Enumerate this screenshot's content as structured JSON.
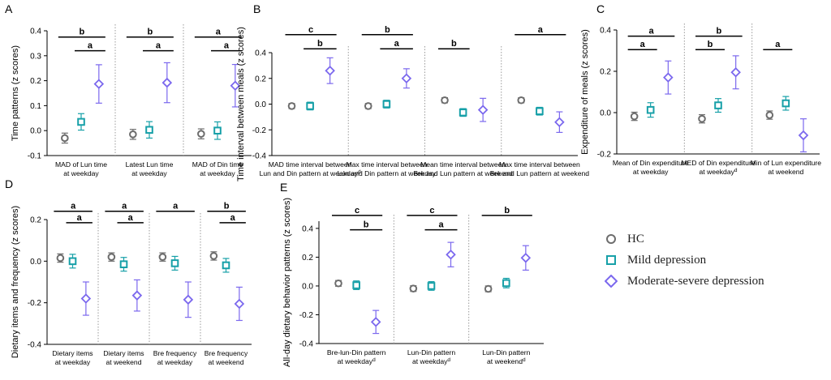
{
  "colors": {
    "hc": "#6d6d6d",
    "mild": "#17a0a8",
    "severe": "#7b68ee",
    "axis": "#000000",
    "divider": "#9a9a9a"
  },
  "legend": [
    {
      "key": "hc",
      "label": "HC",
      "marker": "circle"
    },
    {
      "key": "mild",
      "label": "Mild depression",
      "marker": "square"
    },
    {
      "key": "severe",
      "label": "Moderate-severe depression",
      "marker": "diamond"
    }
  ],
  "chart_data": [
    {
      "type": "scatter",
      "panel": "A",
      "ylabel": "Time patterns (z scores)",
      "ylim": [
        -0.1,
        0.4
      ],
      "yticks": [
        "-0.1",
        "0.0",
        "0.1",
        "0.2",
        "0.3",
        "0.4"
      ],
      "groups": [
        {
          "label": [
            "MAD of Lun time",
            "at weekday"
          ],
          "sup": "",
          "hc": [
            -0.03,
            0.02
          ],
          "mild": [
            0.035,
            0.033
          ],
          "severe": [
            0.187,
            0.077
          ],
          "sig": [
            {
              "text": "b",
              "from": "hc",
              "to": "severe",
              "level": 0.375
            },
            {
              "text": "a",
              "from": "mild",
              "to": "severe",
              "level": 0.32
            }
          ]
        },
        {
          "label": [
            "Latest Lun time",
            "at weekday"
          ],
          "sup": "",
          "hc": [
            -0.015,
            0.02
          ],
          "mild": [
            0.003,
            0.033
          ],
          "severe": [
            0.192,
            0.08
          ],
          "sig": [
            {
              "text": "b",
              "from": "hc",
              "to": "severe",
              "level": 0.375
            },
            {
              "text": "a",
              "from": "mild",
              "to": "severe",
              "level": 0.32
            }
          ]
        },
        {
          "label": [
            "MAD of Din time",
            "at weekday"
          ],
          "sup": "",
          "hc": [
            -0.013,
            0.02
          ],
          "mild": [
            0.0,
            0.035
          ],
          "severe": [
            0.18,
            0.085
          ],
          "sig": [
            {
              "text": "a",
              "from": "hc",
              "to": "severe",
              "level": 0.375
            },
            {
              "text": "a",
              "from": "mild",
              "to": "severe",
              "level": 0.32
            }
          ]
        }
      ]
    },
    {
      "type": "scatter",
      "panel": "B",
      "ylabel": "Time interval between meals (z scores)",
      "ylim": [
        -0.4,
        0.4
      ],
      "yticks": [
        "-0.4",
        "-0.2",
        "0.0",
        "0.2",
        "0.4"
      ],
      "groups": [
        {
          "label": [
            "MAD time interval between",
            "Lun and Din pattern at weekday"
          ],
          "sup": "d",
          "hc": [
            -0.015,
            0.02
          ],
          "mild": [
            -0.015,
            0.03
          ],
          "severe": [
            0.26,
            0.1
          ],
          "sig": [
            {
              "text": "c",
              "from": "hc",
              "to": "severe",
              "level": 0.54
            },
            {
              "text": "b",
              "from": "mild",
              "to": "severe",
              "level": 0.43
            }
          ]
        },
        {
          "label": [
            "Max time interval between",
            "Lun and Din pattern at weekday"
          ],
          "sup": "",
          "hc": [
            -0.015,
            0.02
          ],
          "mild": [
            0.0,
            0.03
          ],
          "severe": [
            0.2,
            0.075
          ],
          "sig": [
            {
              "text": "b",
              "from": "hc",
              "to": "severe",
              "level": 0.54
            },
            {
              "text": "a",
              "from": "mild",
              "to": "severe",
              "level": 0.43
            }
          ]
        },
        {
          "label": [
            "Mean time interval between",
            "Bre and Lun pattern at weekend"
          ],
          "sup": "",
          "hc": [
            0.03,
            0.02
          ],
          "mild": [
            -0.065,
            0.03
          ],
          "severe": [
            -0.045,
            0.09
          ],
          "sig": [
            {
              "text": "b",
              "from": "hc",
              "to": "mild",
              "level": 0.43
            }
          ]
        },
        {
          "label": [
            "Max time interval between",
            "Bre and Lun pattern at weekend"
          ],
          "sup": "",
          "hc": [
            0.03,
            0.02
          ],
          "mild": [
            -0.055,
            0.03
          ],
          "severe": [
            -0.14,
            0.08
          ],
          "sig": [
            {
              "text": "a",
              "from": "hc",
              "to": "severe",
              "level": 0.54
            }
          ]
        }
      ]
    },
    {
      "type": "scatter",
      "panel": "C",
      "ylabel": "Expenditure of meals (z scores)",
      "ylim": [
        -0.2,
        0.4
      ],
      "yticks": [
        "-0.2",
        "0.0",
        "0.2",
        "0.4"
      ],
      "groups": [
        {
          "label": [
            "Mean of Din expenditure",
            "at weekday"
          ],
          "sup": "",
          "hc": [
            -0.018,
            0.02
          ],
          "mild": [
            0.013,
            0.035
          ],
          "severe": [
            0.17,
            0.08
          ],
          "sig": [
            {
              "text": "a",
              "from": "hc",
              "to": "severe",
              "level": 0.37
            },
            {
              "text": "a",
              "from": "hc",
              "to": "mild",
              "level": 0.305
            }
          ]
        },
        {
          "label": [
            "MED of Din expenditure",
            "at weekday"
          ],
          "sup": "d",
          "hc": [
            -0.03,
            0.02
          ],
          "mild": [
            0.035,
            0.033
          ],
          "severe": [
            0.195,
            0.08
          ],
          "sig": [
            {
              "text": "b",
              "from": "hc",
              "to": "severe",
              "level": 0.37
            },
            {
              "text": "b",
              "from": "hc",
              "to": "mild",
              "level": 0.305
            }
          ]
        },
        {
          "label": [
            "Min of Lun expenditure",
            "at weekend"
          ],
          "sup": "",
          "hc": [
            -0.012,
            0.02
          ],
          "mild": [
            0.045,
            0.033
          ],
          "severe": [
            -0.11,
            0.08
          ],
          "sig": [
            {
              "text": "a",
              "from": "hc",
              "to": "mild",
              "level": 0.305
            }
          ]
        }
      ]
    },
    {
      "type": "scatter",
      "panel": "D",
      "ylabel": "Dietary items and frequency (z scores)",
      "ylim": [
        -0.4,
        0.2
      ],
      "yticks": [
        "-0.4",
        "-0.2",
        "0.0",
        "0.2"
      ],
      "groups": [
        {
          "label": [
            "Dietary items",
            "at weekday"
          ],
          "sup": "",
          "hc": [
            0.015,
            0.02
          ],
          "mild": [
            0.0,
            0.033
          ],
          "severe": [
            -0.18,
            0.08
          ],
          "sig": [
            {
              "text": "a",
              "from": "hc",
              "to": "severe",
              "level": 0.24
            },
            {
              "text": "a",
              "from": "mild",
              "to": "severe",
              "level": 0.185
            }
          ]
        },
        {
          "label": [
            "Dietary items",
            "at weekend"
          ],
          "sup": "",
          "hc": [
            0.02,
            0.02
          ],
          "mild": [
            -0.015,
            0.033
          ],
          "severe": [
            -0.165,
            0.075
          ],
          "sig": [
            {
              "text": "a",
              "from": "hc",
              "to": "severe",
              "level": 0.24
            },
            {
              "text": "a",
              "from": "mild",
              "to": "severe",
              "level": 0.185
            }
          ]
        },
        {
          "label": [
            "Bre frequency",
            "at weekday"
          ],
          "sup": "",
          "hc": [
            0.02,
            0.02
          ],
          "mild": [
            -0.01,
            0.033
          ],
          "severe": [
            -0.185,
            0.085
          ],
          "sig": [
            {
              "text": "a",
              "from": "hc",
              "to": "severe",
              "level": 0.24
            }
          ]
        },
        {
          "label": [
            "Bre frequency",
            "at weekend"
          ],
          "sup": "",
          "hc": [
            0.025,
            0.02
          ],
          "mild": [
            -0.02,
            0.033
          ],
          "severe": [
            -0.205,
            0.08
          ],
          "sig": [
            {
              "text": "b",
              "from": "hc",
              "to": "severe",
              "level": 0.24
            },
            {
              "text": "a",
              "from": "mild",
              "to": "severe",
              "level": 0.185
            }
          ]
        }
      ]
    },
    {
      "type": "scatter",
      "panel": "E",
      "ylabel": "All-day dietary behavior patterns (z scores)",
      "ylim": [
        -0.4,
        0.45
      ],
      "yticks": [
        "-0.4",
        "-0.2",
        "0.0",
        "0.2",
        "0.4"
      ],
      "groups": [
        {
          "label": [
            "Bre-lun-Din pattern",
            "at weekday"
          ],
          "sup": "d",
          "hc": [
            0.018,
            0.02
          ],
          "mild": [
            0.005,
            0.03
          ],
          "severe": [
            -0.25,
            0.08
          ],
          "sig": [
            {
              "text": "c",
              "from": "hc",
              "to": "severe",
              "level": 0.49
            },
            {
              "text": "b",
              "from": "mild",
              "to": "severe",
              "level": 0.39
            }
          ]
        },
        {
          "label": [
            "Lun-Din pattern",
            "at weekday"
          ],
          "sup": "d",
          "hc": [
            -0.018,
            0.02
          ],
          "mild": [
            0.0,
            0.03
          ],
          "severe": [
            0.218,
            0.085
          ],
          "sig": [
            {
              "text": "c",
              "from": "hc",
              "to": "severe",
              "level": 0.49
            },
            {
              "text": "a",
              "from": "mild",
              "to": "severe",
              "level": 0.39
            }
          ]
        },
        {
          "label": [
            "Lun-Din pattern",
            "at weekend"
          ],
          "sup": "d",
          "hc": [
            -0.02,
            0.02
          ],
          "mild": [
            0.02,
            0.033
          ],
          "severe": [
            0.195,
            0.085
          ],
          "sig": [
            {
              "text": "b",
              "from": "hc",
              "to": "severe",
              "level": 0.49
            }
          ]
        }
      ]
    }
  ]
}
